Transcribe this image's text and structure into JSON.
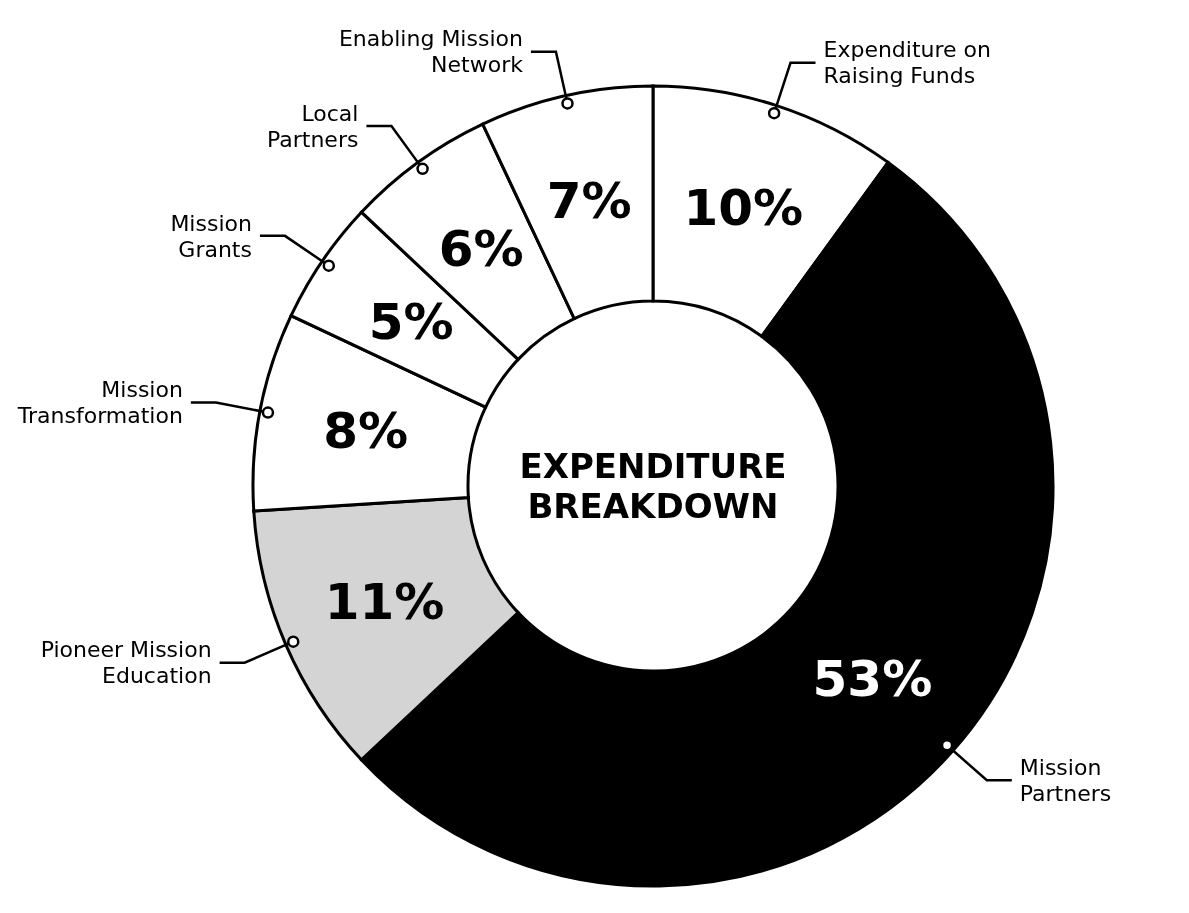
{
  "chart_data": {
    "type": "donut",
    "title": "EXPENDITURE BREAKDOWN",
    "categories": [
      "Expenditure on Raising Funds",
      "Mission Partners",
      "Pioneer Mission Education",
      "Mission Transformation",
      "Mission Grants",
      "Local Partners",
      "Enabling Mission Network"
    ],
    "values": [
      10,
      53,
      11,
      8,
      5,
      6,
      7
    ],
    "colors": [
      "#ffffff",
      "#000000",
      "#d4d4d4",
      "#ffffff",
      "#ffffff",
      "#ffffff",
      "#ffffff"
    ],
    "value_labels": [
      "10%",
      "53%",
      "11%",
      "8%",
      "5%",
      "6%",
      "7%"
    ]
  }
}
